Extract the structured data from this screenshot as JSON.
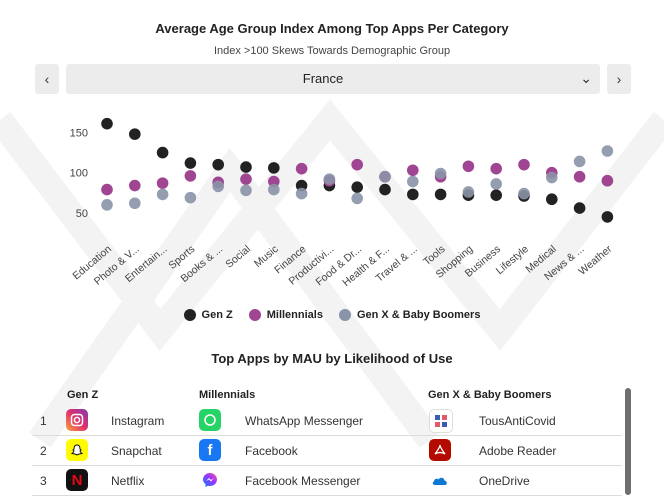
{
  "header": {
    "title": "Average Age Group Index Among Top Apps Per Category",
    "subtitle": "Index  >100 Skews Towards Demographic Group"
  },
  "selector": {
    "prev_icon": "chevron-left-icon",
    "next_icon": "chevron-right-icon",
    "selected": "France",
    "caret_icon": "chevron-down-icon"
  },
  "chart_data": {
    "type": "scatter",
    "categories": [
      "Education",
      "Photo & V...",
      "Entertain...",
      "Sports",
      "Books & ...",
      "Social",
      "Music",
      "Finance",
      "Productivi...",
      "Food & Dr...",
      "Health & F...",
      "Travel & ...",
      "Tools",
      "Shopping",
      "Business",
      "Lifestyle",
      "Medical",
      "News & ...",
      "Weather"
    ],
    "y_ticks": [
      50,
      100,
      150
    ],
    "ylim": [
      20,
      178
    ],
    "grid": false,
    "legend": "bottom",
    "series": [
      {
        "name": "Gen Z",
        "color": "#222222",
        "values": [
          161,
          148,
          125,
          112,
          110,
          107,
          106,
          84,
          84,
          82,
          79,
          73,
          73,
          72,
          72,
          71,
          67,
          56,
          45
        ]
      },
      {
        "name": "Millennials",
        "color": "#a04592",
        "values": [
          79,
          84,
          87,
          96,
          88,
          92,
          89,
          105,
          90,
          110,
          95,
          103,
          95,
          108,
          105,
          110,
          100,
          95,
          90
        ]
      },
      {
        "name": "Gen X & Baby Boomers",
        "color": "#8a94a8",
        "values": [
          60,
          62,
          73,
          69,
          83,
          78,
          79,
          74,
          92,
          68,
          95,
          89,
          99,
          76,
          86,
          74,
          94,
          114,
          127
        ]
      }
    ]
  },
  "apps": {
    "title": "Top Apps by MAU by Likelihood of Use",
    "columns": [
      "Gen Z",
      "Millennials",
      "Gen X & Baby Boomers"
    ],
    "rows": [
      {
        "rank": "1",
        "genz": "Instagram",
        "millennials": "WhatsApp Messenger",
        "genx": "TousAntiCovid"
      },
      {
        "rank": "2",
        "genz": "Snapchat",
        "millennials": "Facebook",
        "genx": "Adobe Reader"
      },
      {
        "rank": "3",
        "genz": "Netflix",
        "millennials": "Facebook Messenger",
        "genx": "OneDrive"
      }
    ],
    "icons": {
      "instagram": "instagram-icon",
      "snapchat": "snapchat-icon",
      "netflix": "netflix-icon",
      "whatsapp": "whatsapp-icon",
      "facebook": "facebook-icon",
      "messenger": "messenger-icon",
      "tousanticovid": "tousanticovid-icon",
      "adobe": "adobe-reader-icon",
      "onedrive": "onedrive-icon"
    }
  }
}
